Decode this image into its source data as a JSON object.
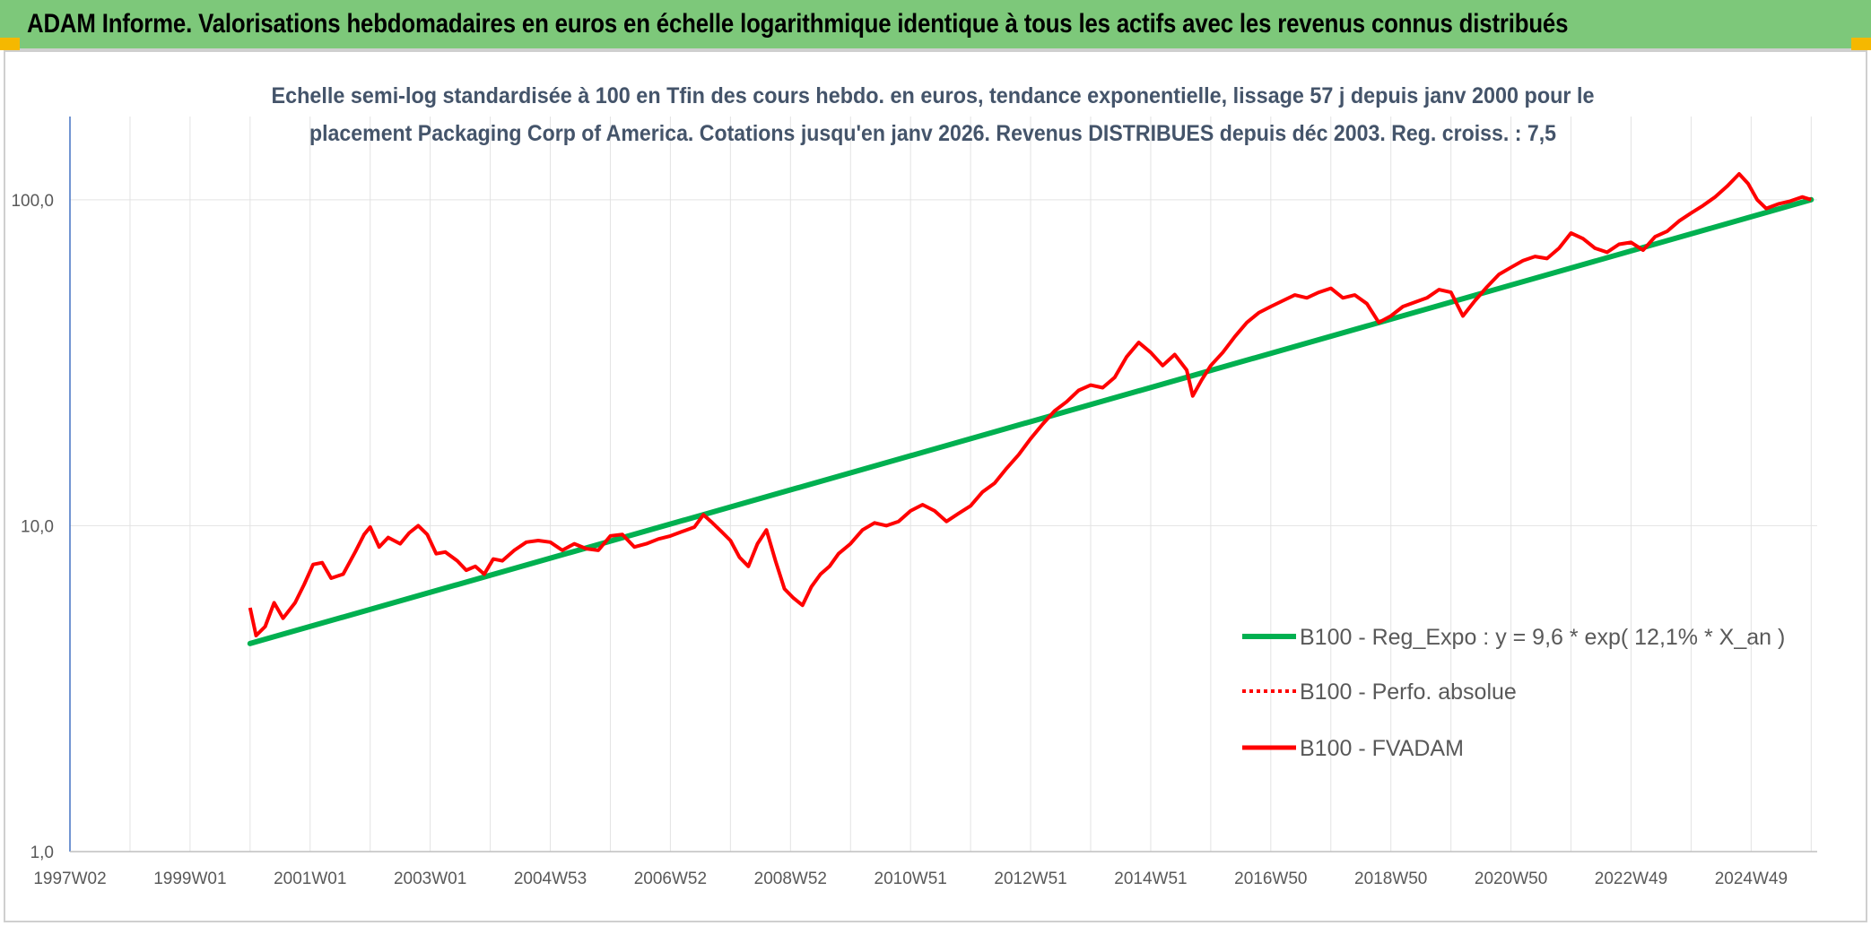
{
  "header": {
    "title": "ADAM Informe. Valorisations hebdomadaires en euros en échelle logarithmique identique à tous les actifs avec les revenus connus distribués"
  },
  "colors": {
    "header_bg": "#7dc87a",
    "corner_accent": "#f5b800",
    "regression": "#00b050",
    "fvadam": "#ff0000",
    "perfo": "#ff0000",
    "subtitle": "#44546a"
  },
  "chart_data": {
    "type": "line",
    "subtitle_lines": [
      "Echelle semi-log standardisée à 100 en Tfin des cours hebdo. en euros, tendance exponentielle, lissage 57 j depuis janv 2000 pour le",
      "placement Packaging Corp of America. Cotations jusqu'en janv 2026. Revenus DISTRIBUES depuis déc 2003. Reg. croiss. : 7,5"
    ],
    "y_scale": "log",
    "ylim": [
      1,
      180
    ],
    "yticks": [
      {
        "value": 1,
        "label": "1,0"
      },
      {
        "value": 10,
        "label": "10,0"
      },
      {
        "value": 100,
        "label": "100,0"
      }
    ],
    "x_range": [
      1997.0,
      2026.1
    ],
    "xticks": [
      {
        "value": 1997.0,
        "label": "1997W02"
      },
      {
        "value": 1999.0,
        "label": "1999W01"
      },
      {
        "value": 2001.0,
        "label": "2001W01"
      },
      {
        "value": 2003.0,
        "label": "2003W01"
      },
      {
        "value": 2005.0,
        "label": "2004W53"
      },
      {
        "value": 2007.0,
        "label": "2006W52"
      },
      {
        "value": 2009.0,
        "label": "2008W52"
      },
      {
        "value": 2011.0,
        "label": "2010W51"
      },
      {
        "value": 2013.0,
        "label": "2012W51"
      },
      {
        "value": 2015.0,
        "label": "2014W51"
      },
      {
        "value": 2017.0,
        "label": "2016W50"
      },
      {
        "value": 2019.0,
        "label": "2018W50"
      },
      {
        "value": 2021.0,
        "label": "2020W50"
      },
      {
        "value": 2023.0,
        "label": "2022W49"
      },
      {
        "value": 2025.0,
        "label": "2024W49"
      }
    ],
    "grid": "vertical and horizontal",
    "legend_position": "right",
    "series": [
      {
        "name": "B100 - Reg_Expo : y = 9,6 * exp( 12,1% *  X_an )",
        "style": "solid-thick",
        "color": "#00b050",
        "points": [
          [
            2000.0,
            4.35
          ],
          [
            2026.0,
            100.0
          ]
        ]
      },
      {
        "name": "B100 - Perfo. absolue",
        "style": "dotted",
        "color": "#ff0000",
        "points": []
      },
      {
        "name": "B100 - FVADAM",
        "style": "solid",
        "color": "#ff0000",
        "points": [
          [
            2000.0,
            5.6
          ],
          [
            2000.1,
            4.6
          ],
          [
            2000.25,
            4.9
          ],
          [
            2000.4,
            5.8
          ],
          [
            2000.55,
            5.2
          ],
          [
            2000.75,
            5.8
          ],
          [
            2000.9,
            6.6
          ],
          [
            2001.05,
            7.6
          ],
          [
            2001.2,
            7.7
          ],
          [
            2001.35,
            6.9
          ],
          [
            2001.55,
            7.1
          ],
          [
            2001.75,
            8.3
          ],
          [
            2001.9,
            9.4
          ],
          [
            2002.0,
            9.9
          ],
          [
            2002.15,
            8.6
          ],
          [
            2002.3,
            9.2
          ],
          [
            2002.5,
            8.8
          ],
          [
            2002.65,
            9.5
          ],
          [
            2002.8,
            10.0
          ],
          [
            2002.95,
            9.4
          ],
          [
            2003.1,
            8.2
          ],
          [
            2003.25,
            8.3
          ],
          [
            2003.45,
            7.8
          ],
          [
            2003.6,
            7.3
          ],
          [
            2003.75,
            7.5
          ],
          [
            2003.9,
            7.1
          ],
          [
            2004.05,
            7.9
          ],
          [
            2004.2,
            7.8
          ],
          [
            2004.4,
            8.4
          ],
          [
            2004.6,
            8.9
          ],
          [
            2004.8,
            9.0
          ],
          [
            2005.0,
            8.9
          ],
          [
            2005.2,
            8.4
          ],
          [
            2005.4,
            8.8
          ],
          [
            2005.6,
            8.5
          ],
          [
            2005.8,
            8.4
          ],
          [
            2006.0,
            9.3
          ],
          [
            2006.2,
            9.4
          ],
          [
            2006.4,
            8.6
          ],
          [
            2006.6,
            8.8
          ],
          [
            2006.8,
            9.1
          ],
          [
            2007.0,
            9.3
          ],
          [
            2007.2,
            9.6
          ],
          [
            2007.4,
            9.9
          ],
          [
            2007.55,
            10.8
          ],
          [
            2007.7,
            10.2
          ],
          [
            2007.85,
            9.6
          ],
          [
            2008.0,
            9.0
          ],
          [
            2008.15,
            8.0
          ],
          [
            2008.3,
            7.5
          ],
          [
            2008.45,
            8.8
          ],
          [
            2008.6,
            9.7
          ],
          [
            2008.75,
            7.8
          ],
          [
            2008.9,
            6.4
          ],
          [
            2009.05,
            6.0
          ],
          [
            2009.2,
            5.7
          ],
          [
            2009.35,
            6.5
          ],
          [
            2009.5,
            7.1
          ],
          [
            2009.65,
            7.5
          ],
          [
            2009.8,
            8.2
          ],
          [
            2010.0,
            8.8
          ],
          [
            2010.2,
            9.7
          ],
          [
            2010.4,
            10.2
          ],
          [
            2010.6,
            10.0
          ],
          [
            2010.8,
            10.3
          ],
          [
            2011.0,
            11.1
          ],
          [
            2011.2,
            11.6
          ],
          [
            2011.4,
            11.1
          ],
          [
            2011.6,
            10.3
          ],
          [
            2011.8,
            10.9
          ],
          [
            2012.0,
            11.5
          ],
          [
            2012.2,
            12.7
          ],
          [
            2012.4,
            13.5
          ],
          [
            2012.6,
            15.0
          ],
          [
            2012.8,
            16.5
          ],
          [
            2013.0,
            18.5
          ],
          [
            2013.2,
            20.5
          ],
          [
            2013.4,
            22.5
          ],
          [
            2013.6,
            24.0
          ],
          [
            2013.8,
            26.0
          ],
          [
            2014.0,
            27.0
          ],
          [
            2014.2,
            26.5
          ],
          [
            2014.4,
            28.5
          ],
          [
            2014.6,
            33.0
          ],
          [
            2014.8,
            36.5
          ],
          [
            2015.0,
            34.0
          ],
          [
            2015.2,
            31.0
          ],
          [
            2015.4,
            33.5
          ],
          [
            2015.6,
            30.0
          ],
          [
            2015.7,
            25.0
          ],
          [
            2015.85,
            28.0
          ],
          [
            2016.0,
            31.0
          ],
          [
            2016.2,
            34.0
          ],
          [
            2016.4,
            38.0
          ],
          [
            2016.6,
            42.0
          ],
          [
            2016.8,
            45.0
          ],
          [
            2017.0,
            47.0
          ],
          [
            2017.2,
            49.0
          ],
          [
            2017.4,
            51.0
          ],
          [
            2017.6,
            50.0
          ],
          [
            2017.8,
            52.0
          ],
          [
            2018.0,
            53.5
          ],
          [
            2018.2,
            50.0
          ],
          [
            2018.4,
            51.0
          ],
          [
            2018.6,
            48.0
          ],
          [
            2018.8,
            42.0
          ],
          [
            2019.0,
            44.0
          ],
          [
            2019.2,
            47.0
          ],
          [
            2019.4,
            48.5
          ],
          [
            2019.6,
            50.0
          ],
          [
            2019.8,
            53.0
          ],
          [
            2020.0,
            52.0
          ],
          [
            2020.2,
            44.0
          ],
          [
            2020.4,
            49.0
          ],
          [
            2020.6,
            54.0
          ],
          [
            2020.8,
            59.0
          ],
          [
            2021.0,
            62.0
          ],
          [
            2021.2,
            65.0
          ],
          [
            2021.4,
            67.0
          ],
          [
            2021.6,
            66.0
          ],
          [
            2021.8,
            71.0
          ],
          [
            2022.0,
            79.0
          ],
          [
            2022.2,
            76.0
          ],
          [
            2022.4,
            71.0
          ],
          [
            2022.6,
            69.0
          ],
          [
            2022.8,
            73.0
          ],
          [
            2023.0,
            74.0
          ],
          [
            2023.2,
            70.0
          ],
          [
            2023.4,
            77.0
          ],
          [
            2023.6,
            80.0
          ],
          [
            2023.8,
            86.0
          ],
          [
            2024.0,
            91.0
          ],
          [
            2024.2,
            96.0
          ],
          [
            2024.4,
            102.0
          ],
          [
            2024.6,
            110.0
          ],
          [
            2024.8,
            120.0
          ],
          [
            2024.95,
            112.0
          ],
          [
            2025.1,
            100.0
          ],
          [
            2025.25,
            94.0
          ],
          [
            2025.45,
            97.0
          ],
          [
            2025.65,
            99.0
          ],
          [
            2025.85,
            102.0
          ],
          [
            2026.0,
            100.0
          ]
        ]
      }
    ]
  }
}
